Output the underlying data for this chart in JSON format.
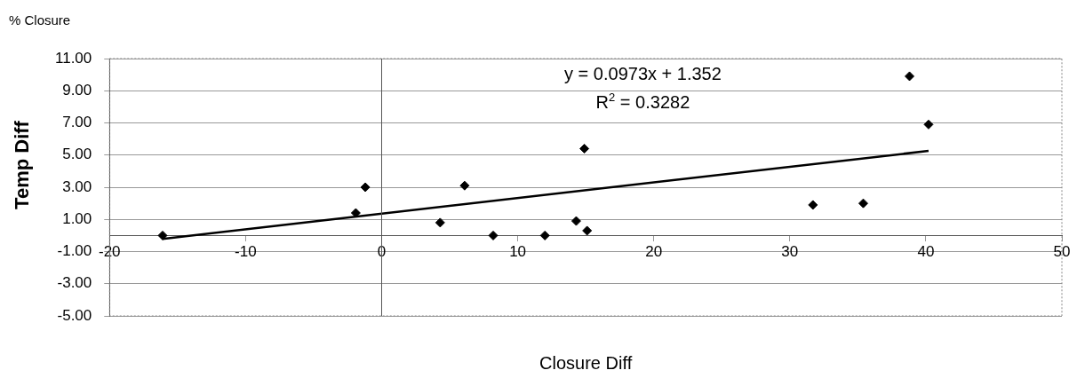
{
  "chart_data": {
    "type": "scatter",
    "xlabel": "Closure Diff",
    "ylabel": "Temp Diff",
    "annotations": [
      "% Closure",
      "y = 0.0973x + 1.352",
      "R$^{2}$ = 0.3282"
    ],
    "xlim": [
      -20,
      50
    ],
    "xticks": [
      -20,
      -10,
      0,
      10,
      20,
      30,
      40,
      50
    ],
    "ylim": [
      -5,
      11
    ],
    "yticks": [
      {
        "value": -5,
        "label": "-5.00"
      },
      {
        "value": -3,
        "label": "-3.00"
      },
      {
        "value": -1,
        "label": "-1.00"
      },
      {
        "value": 1,
        "label": "1.00"
      },
      {
        "value": 3,
        "label": "3.00"
      },
      {
        "value": 5,
        "label": "5.00"
      },
      {
        "value": 7,
        "label": "7.00"
      },
      {
        "value": 9,
        "label": "9.00"
      },
      {
        "value": 11,
        "label": "11.00"
      }
    ],
    "grid": "y",
    "legend": false,
    "marker": "diamond",
    "series": [
      {
        "color": "#000000",
        "x": [
          -16.1,
          -1.9,
          -1.2,
          4.3,
          6.1,
          8.2,
          12.0,
          14.3,
          14.9,
          15.1,
          31.7,
          35.4,
          38.8,
          40.2
        ],
        "values": [
          0.0,
          1.4,
          3.0,
          0.8,
          3.1,
          0.0,
          0.0,
          0.9,
          5.4,
          0.3,
          1.9,
          2.0,
          9.9,
          6.9
        ]
      },
      {
        "type": "line",
        "color": "#000000",
        "marker": "none",
        "x": [
          -16.1,
          40.2
        ],
        "values": [
          -0.21,
          5.26
        ]
      }
    ]
  }
}
